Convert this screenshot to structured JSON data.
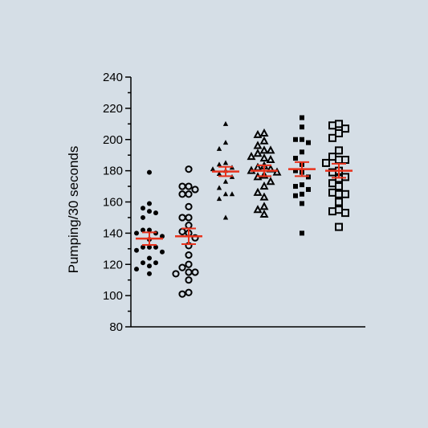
{
  "chart_data": {
    "type": "scatter",
    "title": "",
    "xlabel": "",
    "ylabel": "Pumping/30 seconds",
    "ylim": [
      80,
      240
    ],
    "yticks": [
      80,
      100,
      120,
      140,
      160,
      180,
      200,
      220,
      240
    ],
    "grid": false,
    "legend": "none",
    "summary_color": "#e8321c",
    "marker_color": "#000000",
    "series": [
      {
        "marker": "filled-circle",
        "mean": 136.5,
        "sem": 4,
        "values": [
          179,
          159,
          156,
          154,
          153,
          150,
          142,
          142,
          140,
          140,
          138,
          136,
          131,
          131,
          131,
          129,
          128,
          124,
          121,
          121,
          119,
          117,
          114
        ]
      },
      {
        "marker": "open-circle",
        "mean": 138,
        "sem": 5,
        "values": [
          181,
          170,
          170,
          168,
          165,
          165,
          157,
          150,
          150,
          145,
          141,
          140,
          137,
          132,
          126,
          120,
          118,
          115,
          115,
          114,
          110,
          102,
          101
        ]
      },
      {
        "marker": "filled-triangle",
        "mean": 179.5,
        "sem": 3,
        "values": [
          210,
          198,
          194,
          185,
          184,
          182,
          181,
          180,
          178,
          176,
          173,
          169,
          165,
          165,
          162,
          150
        ]
      },
      {
        "marker": "open-triangle",
        "mean": 180,
        "sem": 3.5,
        "values": [
          204,
          203,
          199,
          196,
          193,
          193,
          191,
          189,
          188,
          187,
          183,
          182,
          181,
          180,
          179,
          177,
          176,
          173,
          170,
          166,
          163,
          157,
          155,
          152
        ]
      },
      {
        "marker": "filled-square",
        "mean": 181,
        "sem": 4.5,
        "values": [
          214,
          208,
          200,
          200,
          198,
          192,
          188,
          184,
          180,
          179,
          176,
          171,
          170,
          168,
          165,
          164,
          159,
          140
        ]
      },
      {
        "marker": "open-square",
        "mean": 180,
        "sem": 4.5,
        "values": [
          210,
          209,
          207,
          204,
          201,
          193,
          189,
          187,
          187,
          185,
          180,
          179,
          176,
          175,
          172,
          170,
          166,
          165,
          165,
          160,
          155,
          154,
          153,
          144
        ]
      }
    ]
  }
}
